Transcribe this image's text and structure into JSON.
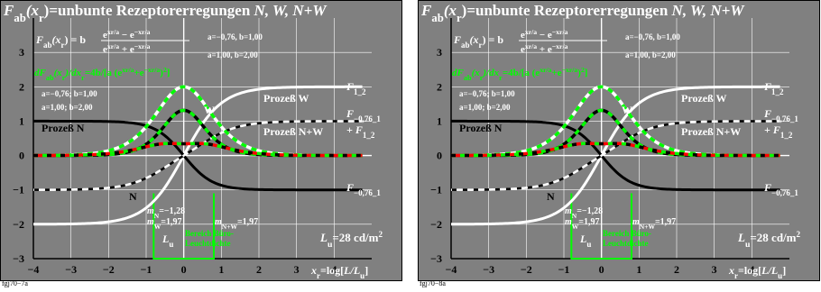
{
  "chart_data": [
    {
      "type": "line",
      "title_main": "F",
      "title_sub": "ab",
      "title_arg": "(x",
      "title_arg_sub": "r",
      "title_rest": ")=unbunte Rezeptorerregungen ",
      "title_vars": "N, W, N+W",
      "formula_lhs": "F",
      "formula_lhs_sub": "ab",
      "formula_lhs_arg": "(x",
      "formula_lhs_arg_sub": "r",
      "formula_eq": ") = b",
      "formula_num": "e^{xr/a} − e^{−xr/a}",
      "formula_den": "e^{xr/a} + e^{−xr/a}",
      "formula_num_text": "e",
      "formula_exp1": "x",
      "formula_exp1_sub": "r",
      "formula_exp1_tail": "/a",
      "formula_minus": " − e",
      "formula_exp2": "−x",
      "formula_exp2_sub": "r",
      "formula_exp2_tail": "/a",
      "formula_plus": " + e",
      "deriv_text": "dF",
      "deriv_sub": "ab",
      "deriv_mid": "(x",
      "deriv_mid_sub": "r",
      "deriv_rest": ")/dx",
      "deriv_rest_sub": "r",
      "deriv_tail": "=4b/[a (e",
      "deriv_exp1": "x",
      "deriv_exp1_sub": "r",
      "deriv_exp1_tail": "/a",
      "deriv_plus": "+e",
      "deriv_exp2": "−x",
      "deriv_exp2_sub": "r",
      "deriv_exp2_tail": "/a",
      "deriv_close": ")",
      "deriv_sq": "2",
      "deriv_end": "]",
      "params_right_1": "a=−0,76, b=1,00",
      "params_right_2": "a=1,00, b=2,00",
      "params_left_1": "a=−0,76; b=1,00",
      "params_left_2": "a=1,00; b=2,00",
      "label_prozess_w": "Prozeß W",
      "label_prozess_n": "Prozeß N",
      "label_prozess_nw": "Prozeß N+W",
      "label_w": "W",
      "label_n": "N",
      "right_f12": "F",
      "right_f12_sub": "1_2",
      "right_f076": "F",
      "right_f076_sub": "−0,76_1",
      "right_plus_f12": "+ F",
      "right_plus_f12_sub": "1_2",
      "right_f076b": "F",
      "right_f076b_sub": "−0,76_1",
      "mn_text": "m",
      "mn_sub": "N",
      "mn_val": "=−1,28",
      "mw_text": "m",
      "mw_sub": "W",
      "mw_val": "=1,97",
      "mnw_text": "m",
      "mnw_sub": "N+W",
      "mnw_val": "=1,97",
      "lu_text": "L",
      "lu_sub": "u",
      "lu_big": "L",
      "lu_big_sub": "u",
      "lu_big_val": "=28 cd/m",
      "lu_big_sq": "2",
      "bereich_1": "Bereich Büro-",
      "bereich_2": "Leuchtdichte",
      "xaxis_text": "x",
      "xaxis_sub": "r",
      "xaxis_rest": "=log[",
      "xaxis_l": "L/L",
      "xaxis_l_sub": "u",
      "xaxis_end": "]",
      "xlim": [
        -4,
        5
      ],
      "ylim": [
        -3,
        4
      ],
      "xticks": [
        -4,
        -3,
        -2,
        -1,
        0,
        1,
        2,
        3,
        4
      ],
      "xtick_labels": [
        "−4",
        "−3",
        "−2",
        "−1",
        "0",
        "1",
        "2",
        "3",
        "4"
      ],
      "yticks": [
        -3,
        -2,
        -1,
        0,
        1,
        2,
        3
      ],
      "ytick_labels": [
        "−3",
        "−2",
        "−1",
        "0",
        "1",
        "2",
        "3"
      ],
      "bureau_range": [
        -0.8,
        0.8
      ],
      "series": [
        {
          "curve": "Fab_a1_b2",
          "a": 1.0,
          "b": 2.0,
          "color": "#ffffff",
          "style": "solid"
        },
        {
          "curve": "Fab_am076_b1",
          "a": -0.76,
          "b": 1.0,
          "color": "#000000",
          "style": "solid"
        },
        {
          "curve": "sum",
          "color": "#000000",
          "style": "dashed"
        },
        {
          "curve": "dF_a1_b2",
          "a": 1.0,
          "b": 2.0,
          "color": "#ffffff",
          "style": "dashed-green"
        },
        {
          "curve": "dF_am076_b1",
          "a": -0.76,
          "b": 1.0,
          "color": "#000000",
          "style": "dashed-green"
        },
        {
          "curve": "dF_sum",
          "color": "#ff0000",
          "style": "dashed-multi"
        }
      ],
      "footer": "fgj70−7a"
    },
    {
      "footer": "fgj70−8a"
    }
  ],
  "colors": {
    "background": "#808080",
    "frame": "#000000",
    "white": "#ffffff",
    "green": "#00ff00",
    "red": "#ff0000"
  }
}
